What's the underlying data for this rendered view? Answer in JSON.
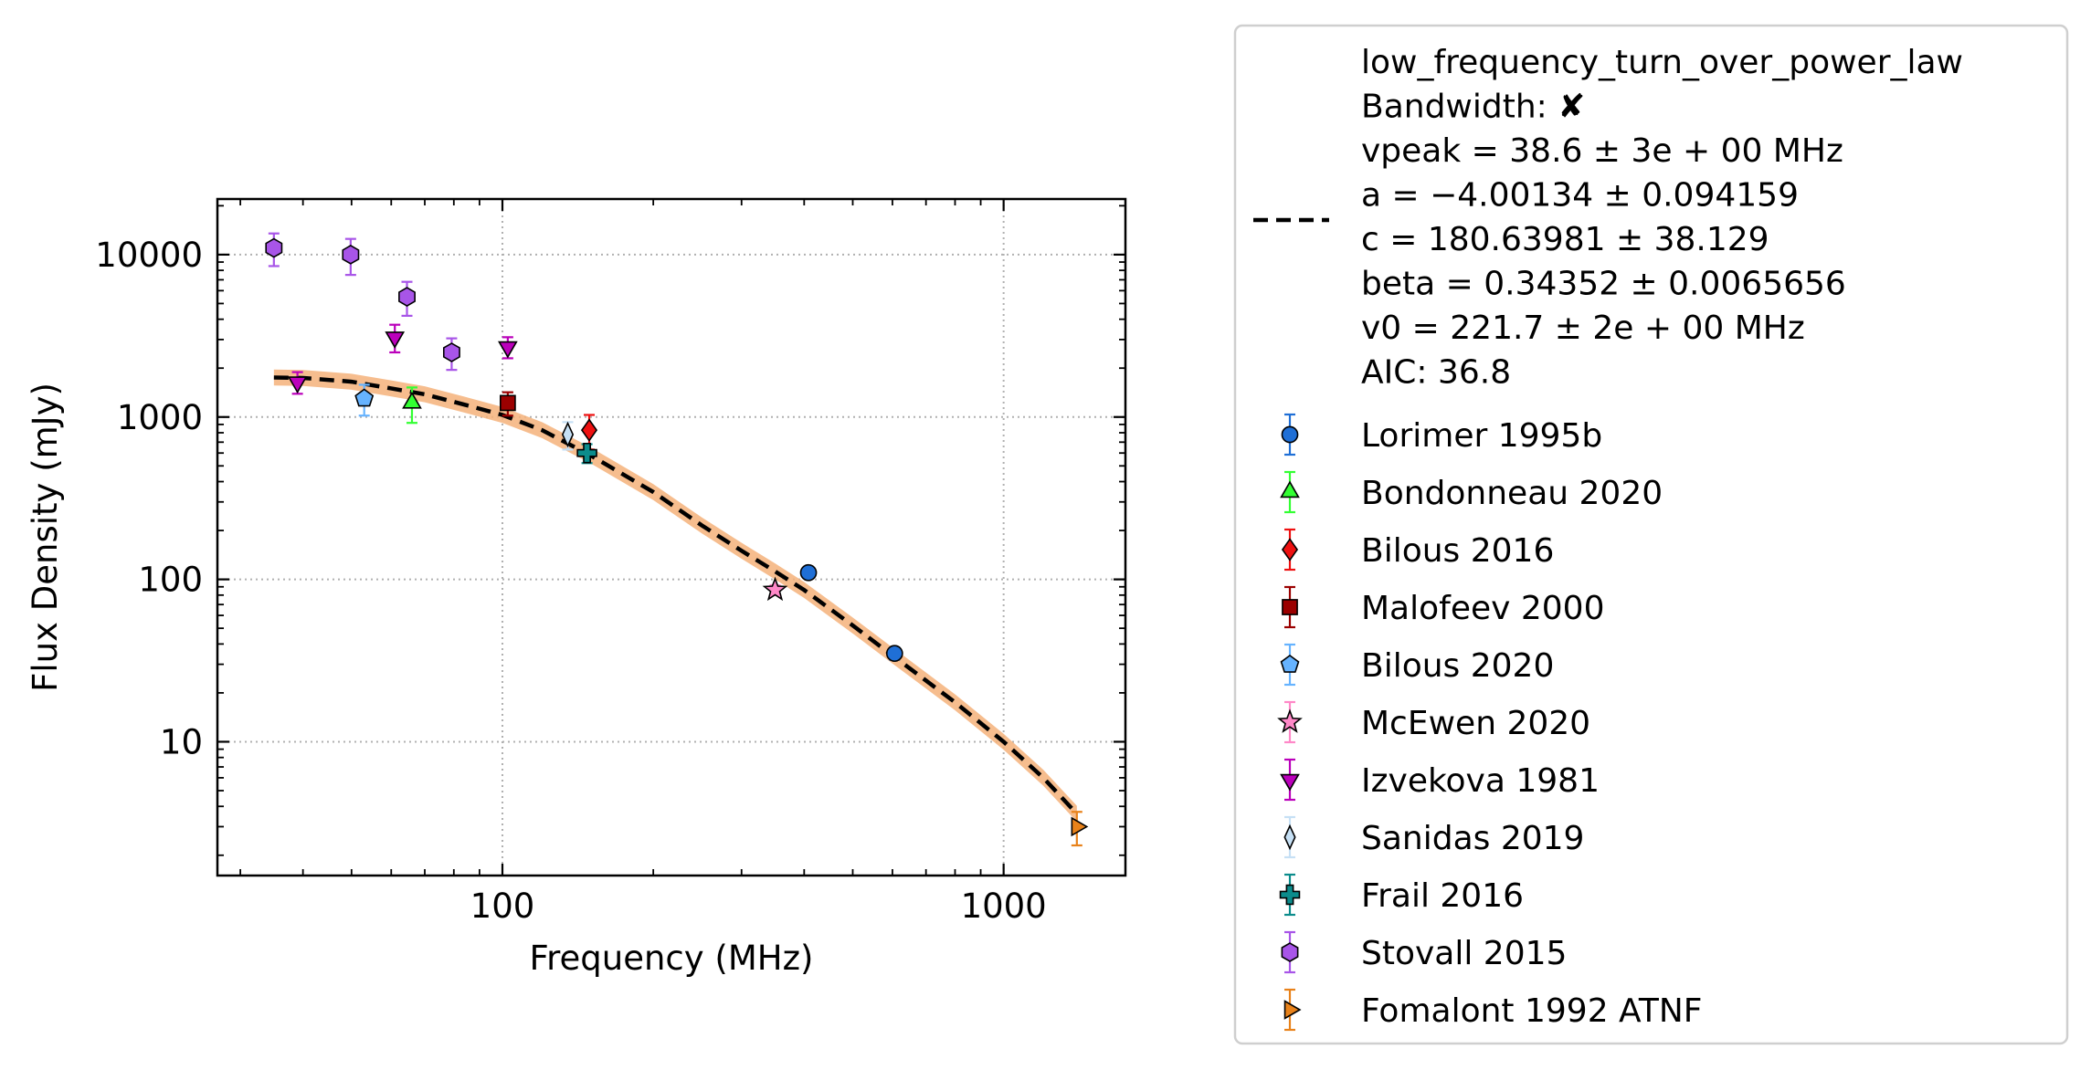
{
  "chart_data": {
    "type": "scatter",
    "xscale": "log",
    "yscale": "log",
    "xlim": [
      27,
      1750
    ],
    "ylim": [
      1.5,
      22000
    ],
    "xlabel": "Frequency (MHz)",
    "ylabel": "Flux Density (mJy)",
    "grid": "major dotted",
    "legend_placement": "outside-right",
    "x_ticks": [
      {
        "value": 100,
        "label": "100"
      },
      {
        "value": 1000,
        "label": "1000"
      }
    ],
    "y_ticks": [
      {
        "value": 10,
        "label": "10"
      },
      {
        "value": 100,
        "label": "100"
      },
      {
        "value": 1000,
        "label": "1000"
      },
      {
        "value": 10000,
        "label": "10000"
      }
    ],
    "fit": {
      "name": "low_frequency_turn_over_power_law",
      "lines": [
        "low_frequency_turn_over_power_law",
        "Bandwidth: ✘",
        "vpeak = 38.6 ± 3e + 00 MHz",
        "a = −4.00134 ± 0.094159",
        "c = 180.63981 ± 38.129",
        "beta = 0.34352 ± 0.0065656",
        "v0 = 221.7 ± 2e + 00 MHz",
        "AIC: 36.8"
      ],
      "color": "#000000",
      "band_color": "#f5b27a",
      "curve": [
        {
          "x": 35,
          "y": 1750
        },
        {
          "x": 40,
          "y": 1740
        },
        {
          "x": 50,
          "y": 1650
        },
        {
          "x": 60,
          "y": 1500
        },
        {
          "x": 70,
          "y": 1380
        },
        {
          "x": 85,
          "y": 1180
        },
        {
          "x": 100,
          "y": 1030
        },
        {
          "x": 120,
          "y": 830
        },
        {
          "x": 150,
          "y": 580
        },
        {
          "x": 200,
          "y": 345
        },
        {
          "x": 250,
          "y": 215
        },
        {
          "x": 300,
          "y": 150
        },
        {
          "x": 350,
          "y": 112
        },
        {
          "x": 400,
          "y": 86
        },
        {
          "x": 500,
          "y": 52
        },
        {
          "x": 600,
          "y": 34
        },
        {
          "x": 800,
          "y": 17.5
        },
        {
          "x": 1000,
          "y": 10
        },
        {
          "x": 1200,
          "y": 6
        },
        {
          "x": 1400,
          "y": 3.6
        }
      ]
    },
    "series": [
      {
        "name": "Lorimer 1995b",
        "marker": "circle",
        "color": "#1f6fd6",
        "points": [
          {
            "x": 408,
            "y": 110,
            "yerr": 8
          },
          {
            "x": 606,
            "y": 35,
            "yerr": 3
          }
        ]
      },
      {
        "name": "Bondonneau 2020",
        "marker": "triangle-up",
        "color": "#33ff33",
        "points": [
          {
            "x": 66,
            "y": 1220,
            "yerr": 300
          }
        ]
      },
      {
        "name": "Bilous 2016",
        "marker": "diamond",
        "color": "#ee1111",
        "points": [
          {
            "x": 149,
            "y": 830,
            "yerr": 200
          }
        ]
      },
      {
        "name": "Malofeev 2000",
        "marker": "square",
        "color": "#9b0000",
        "points": [
          {
            "x": 102.5,
            "y": 1220,
            "yerr": 200
          }
        ]
      },
      {
        "name": "Bilous 2020",
        "marker": "pentagon",
        "color": "#66b3ff",
        "points": [
          {
            "x": 53,
            "y": 1300,
            "yerr": 280
          }
        ]
      },
      {
        "name": "McEwen 2020",
        "marker": "star",
        "color": "#ff88c8",
        "points": [
          {
            "x": 350,
            "y": 86,
            "yerr": 6
          }
        ]
      },
      {
        "name": "Izvekova 1981",
        "marker": "triangle-down",
        "color": "#bb00bb",
        "points": [
          {
            "x": 39,
            "y": 1640,
            "yerr": 250
          },
          {
            "x": 61,
            "y": 3100,
            "yerr": 600
          },
          {
            "x": 102.5,
            "y": 2700,
            "yerr": 400
          }
        ]
      },
      {
        "name": "Sanidas 2019",
        "marker": "thin-diamond",
        "color": "#c6e0f5",
        "points": [
          {
            "x": 135,
            "y": 780,
            "yerr": 150
          }
        ]
      },
      {
        "name": "Frail 2016",
        "marker": "plus",
        "color": "#0c8c8c",
        "points": [
          {
            "x": 147.5,
            "y": 600,
            "yerr": 80
          }
        ]
      },
      {
        "name": "Stovall 2015",
        "marker": "hexagon",
        "color": "#a855e8",
        "points": [
          {
            "x": 35,
            "y": 11000,
            "yerr": 2500
          },
          {
            "x": 49.8,
            "y": 10000,
            "yerr": 2500
          },
          {
            "x": 64.5,
            "y": 5500,
            "yerr": 1300
          },
          {
            "x": 79.2,
            "y": 2500,
            "yerr": 550
          }
        ]
      },
      {
        "name": "Fomalont 1992 ATNF",
        "marker": "triangle-right",
        "color": "#e8821a",
        "points": [
          {
            "x": 1400,
            "y": 3,
            "yerr": 0.7
          }
        ]
      }
    ]
  }
}
